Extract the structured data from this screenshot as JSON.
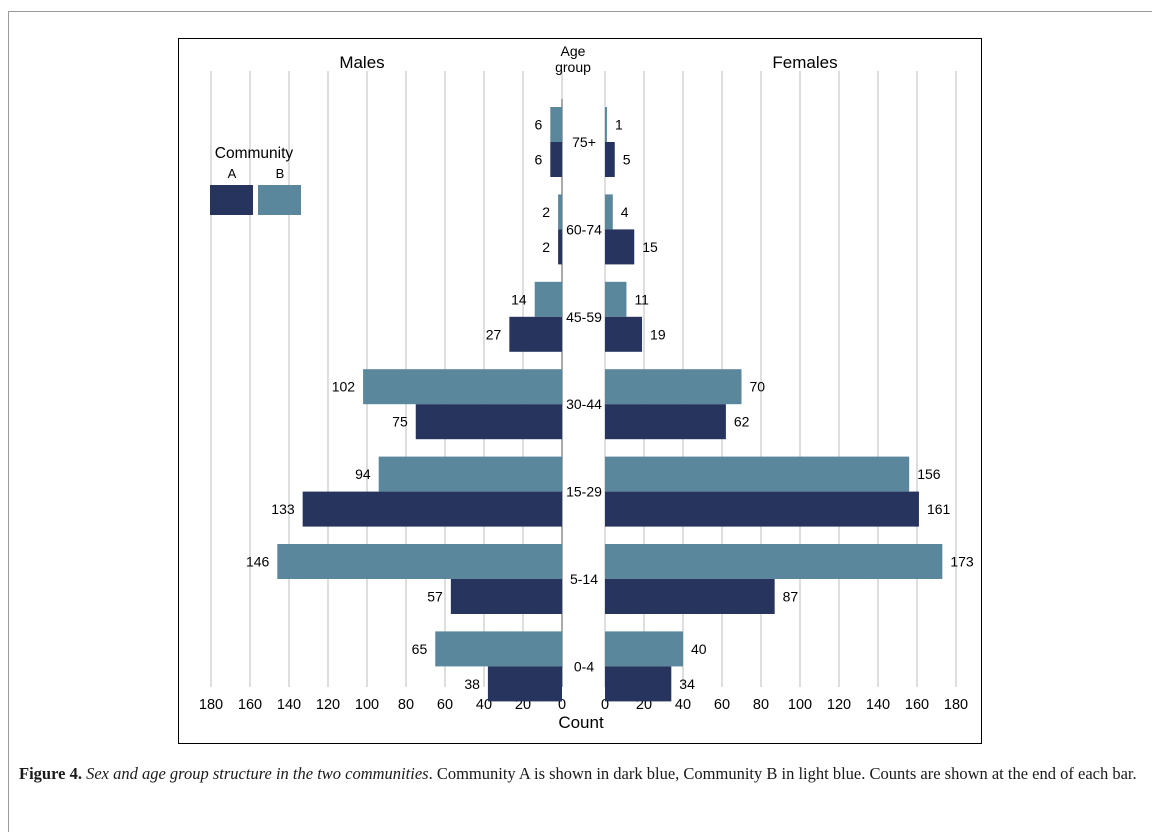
{
  "figure": {
    "caption_lead": "Figure 4.",
    "caption_title": "Sex and age group structure in the two communities",
    "caption_body": ". Community A is shown in dark blue, Community B in light blue. Counts are shown at the end of each bar."
  },
  "colors": {
    "community_a": "#27345e",
    "community_b": "#5a879c",
    "grid": "#bdbdbd"
  },
  "chart_data": {
    "type": "bar",
    "orientation": "horizontal-population-pyramid",
    "left_title": "Males",
    "right_title": "Females",
    "center_title": "Age group",
    "xlabel": "Count",
    "legend": {
      "title": "Community",
      "entries": [
        "A",
        "B"
      ],
      "placement": "left"
    },
    "categories": [
      "75+",
      "60-74",
      "45-59",
      "30-44",
      "15-29",
      "5-14",
      "0-4"
    ],
    "xlim": [
      0,
      180
    ],
    "ticks": [
      0,
      20,
      40,
      60,
      80,
      100,
      120,
      140,
      160,
      180
    ],
    "grid": true,
    "series": [
      {
        "name": "A",
        "males": [
          6,
          2,
          27,
          75,
          133,
          57,
          38
        ],
        "females": [
          5,
          15,
          19,
          62,
          161,
          87,
          34
        ]
      },
      {
        "name": "B",
        "males": [
          6,
          2,
          14,
          102,
          94,
          146,
          65
        ],
        "females": [
          1,
          4,
          11,
          70,
          156,
          173,
          40
        ]
      }
    ]
  }
}
